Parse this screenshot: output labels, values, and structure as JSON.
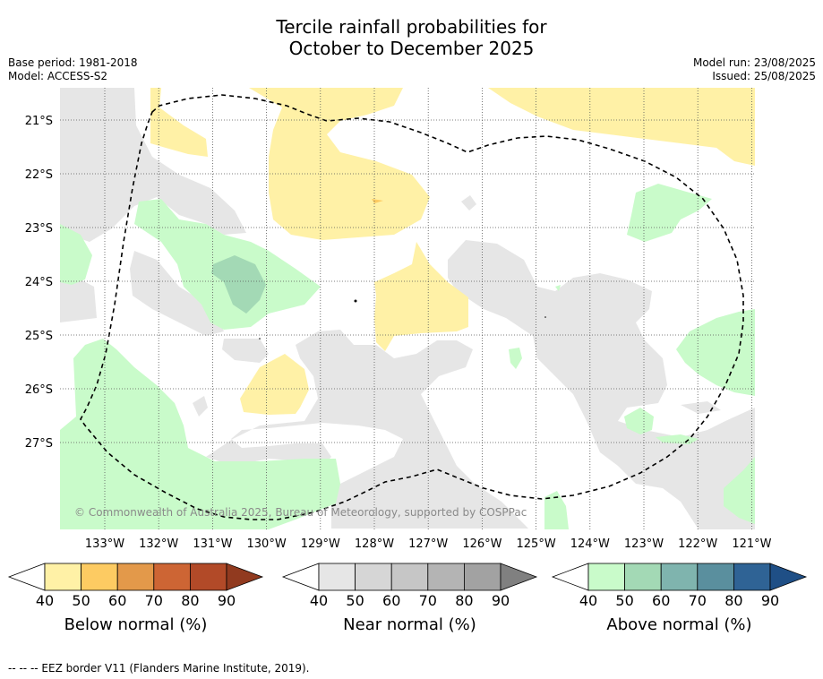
{
  "title_line1": "Tercile rainfall probabilities for",
  "title_line2": "October to December 2025",
  "meta": {
    "base_period": "Base period: 1981-2018",
    "model": "Model: ACCESS-S2",
    "model_run": "Model run: 23/08/2025",
    "issued": "Issued: 25/08/2025"
  },
  "map": {
    "lat_labels": [
      "21°S",
      "22°S",
      "23°S",
      "24°S",
      "25°S",
      "26°S",
      "27°S"
    ],
    "lon_labels": [
      "133°W",
      "132°W",
      "131°W",
      "130°W",
      "129°W",
      "128°W",
      "127°W",
      "126°W",
      "125°W",
      "124°W",
      "123°W",
      "122°W",
      "121°W"
    ],
    "copyright": "© Commonwealth of Australia 2025, Bureau of Meteorology, supported by COSPPac"
  },
  "colorbars": [
    {
      "title": "Below normal (%)",
      "ticks": [
        "40",
        "50",
        "60",
        "70",
        "80",
        "90"
      ],
      "colors": [
        "#fff1a6",
        "#fdcb62",
        "#e3994a",
        "#cd6534",
        "#b24a28",
        "#913a1f"
      ]
    },
    {
      "title": "Near normal (%)",
      "ticks": [
        "40",
        "50",
        "60",
        "70",
        "80",
        "90"
      ],
      "colors": [
        "#e6e6e6",
        "#d6d6d6",
        "#c6c6c6",
        "#b4b4b4",
        "#a2a2a2",
        "#808080"
      ]
    },
    {
      "title": "Above normal (%)",
      "ticks": [
        "40",
        "50",
        "60",
        "70",
        "80",
        "90"
      ],
      "colors": [
        "#c9fbca",
        "#a3d9b5",
        "#7fb4ae",
        "#5a8f9e",
        "#2f6395",
        "#1f4f86"
      ]
    }
  ],
  "footnote": "--  --  -- EEZ border V11 (Flanders Marine Institute, 2019)."
}
